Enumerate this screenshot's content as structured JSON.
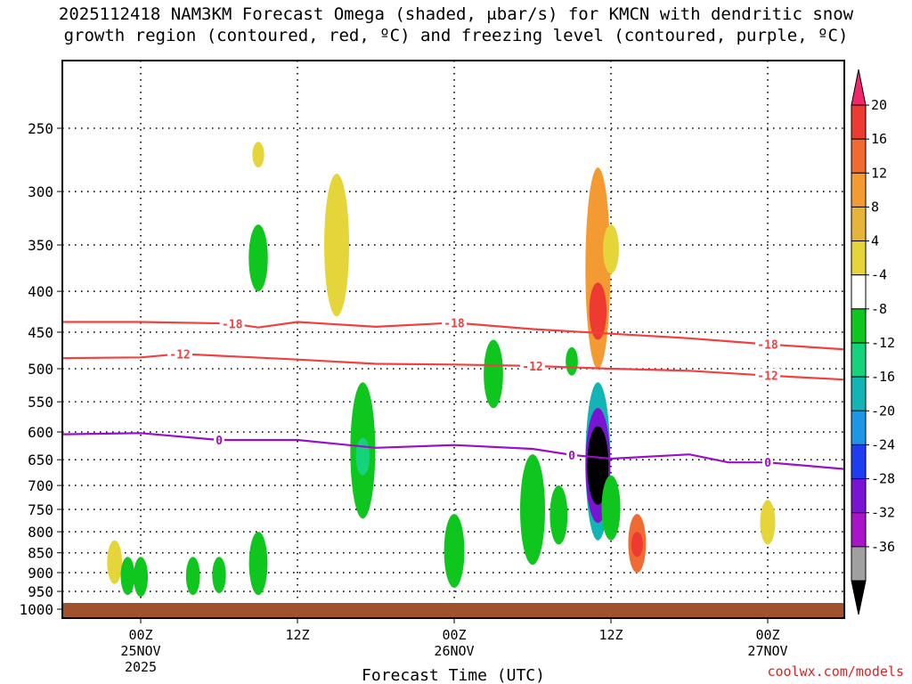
{
  "title": {
    "line1": "2025112418 NAM3KM Forecast Omega (shaded, μbar/s) for KMCN with dendritic snow",
    "line2": "growth region (contoured, red, ºC) and freezing level (contoured, purple, ºC)"
  },
  "credit": "coolwx.com/models",
  "chart_data": {
    "type": "heatmap",
    "xlabel": "Forecast Time (UTC)",
    "ylabel": "",
    "x_domain": [
      "2025-11-24T18Z",
      "2025-11-27T06Z"
    ],
    "y_axis": {
      "scale": "log-pressure",
      "range": [
        1000,
        200
      ],
      "reversed": true,
      "ticks": [
        250,
        300,
        350,
        400,
        450,
        500,
        550,
        600,
        650,
        700,
        750,
        800,
        850,
        900,
        950,
        1000
      ]
    },
    "x_ticks": [
      {
        "t": "2025-11-25T00Z",
        "line1": "00Z",
        "line2": "25NOV",
        "line3": "2025"
      },
      {
        "t": "2025-11-25T12Z",
        "line1": "12Z",
        "line2": "",
        "line3": ""
      },
      {
        "t": "2025-11-26T00Z",
        "line1": "00Z",
        "line2": "26NOV",
        "line3": ""
      },
      {
        "t": "2025-11-26T12Z",
        "line1": "12Z",
        "line2": "",
        "line3": ""
      },
      {
        "t": "2025-11-27T00Z",
        "line1": "00Z",
        "line2": "27NOV",
        "line3": ""
      }
    ],
    "grid": true,
    "colorbar": {
      "labels": [
        "20",
        "16",
        "12",
        "8",
        "4",
        "-4",
        "-8",
        "-12",
        "-16",
        "-20",
        "-24",
        "-28",
        "-32",
        "-36"
      ],
      "colors": [
        "#f0286a",
        "#ee3b32",
        "#f06a32",
        "#f39b32",
        "#e6b43a",
        "#e6d53a",
        "#ffffff",
        "#0fc61e",
        "#16d27a",
        "#12b4b4",
        "#1e96e6",
        "#1e3cf0",
        "#7814d2",
        "#a814c8",
        "#a0a0a0",
        "#000000"
      ]
    },
    "contours": [
      {
        "name": "dendritic -18",
        "label": "-18",
        "color": "#f04040",
        "points": [
          [
            "2025-11-24T18Z",
            437
          ],
          [
            "2025-11-25T00Z",
            437
          ],
          [
            "2025-11-25T07Z",
            439
          ],
          [
            "2025-11-25T09Z",
            444
          ],
          [
            "2025-11-25T12Z",
            437
          ],
          [
            "2025-11-25T18Z",
            443
          ],
          [
            "2025-11-26T00Z",
            438
          ],
          [
            "2025-11-26T06Z",
            446
          ],
          [
            "2025-11-26T12Z",
            452
          ],
          [
            "2025-11-26T18Z",
            458
          ],
          [
            "2025-11-27T00Z",
            466
          ],
          [
            "2025-11-27T06Z",
            473
          ]
        ]
      },
      {
        "name": "dendritic -12",
        "label": "-12",
        "color": "#f04040",
        "points": [
          [
            "2025-11-24T18Z",
            485
          ],
          [
            "2025-11-25T00Z",
            484
          ],
          [
            "2025-11-25T03Z",
            479
          ],
          [
            "2025-11-25T12Z",
            487
          ],
          [
            "2025-11-25T18Z",
            493
          ],
          [
            "2025-11-26T00Z",
            494
          ],
          [
            "2025-11-26T06Z",
            496
          ],
          [
            "2025-11-26T12Z",
            500
          ],
          [
            "2025-11-26T18Z",
            503
          ],
          [
            "2025-11-27T00Z",
            510
          ],
          [
            "2025-11-27T06Z",
            516
          ]
        ]
      },
      {
        "name": "freezing level 0",
        "label": "0",
        "color": "#9a10c8",
        "points": [
          [
            "2025-11-24T18Z",
            604
          ],
          [
            "2025-11-25T00Z",
            602
          ],
          [
            "2025-11-25T06Z",
            614
          ],
          [
            "2025-11-25T12Z",
            614
          ],
          [
            "2025-11-25T18Z",
            628
          ],
          [
            "2025-11-26T00Z",
            623
          ],
          [
            "2025-11-26T06Z",
            630
          ],
          [
            "2025-11-26T09Z",
            641
          ],
          [
            "2025-11-26T12Z",
            648
          ],
          [
            "2025-11-26T18Z",
            640
          ],
          [
            "2025-11-26T21Z",
            655
          ],
          [
            "2025-11-27T00Z",
            655
          ],
          [
            "2025-11-27T06Z",
            668
          ]
        ]
      }
    ],
    "shaded_regions": [
      {
        "t": "2025-11-24T22Z",
        "p_top": 820,
        "p_bot": 930,
        "value": 4,
        "color": "#e6d53a"
      },
      {
        "t": "2025-11-24T23Z",
        "p_top": 860,
        "p_bot": 960,
        "value": -4,
        "color": "#0fc61e"
      },
      {
        "t": "2025-11-25T00Z",
        "p_top": 860,
        "p_bot": 965,
        "value": -4,
        "color": "#0fc61e"
      },
      {
        "t": "2025-11-25T04Z",
        "p_top": 860,
        "p_bot": 960,
        "value": -4,
        "color": "#0fc61e"
      },
      {
        "t": "2025-11-25T06Z",
        "p_top": 860,
        "p_bot": 955,
        "value": -4,
        "color": "#0fc61e"
      },
      {
        "t": "2025-11-25T09Z",
        "p_top": 800,
        "p_bot": 960,
        "value": -4,
        "color": "#0fc61e"
      },
      {
        "t": "2025-11-25T09Z",
        "p_top": 260,
        "p_bot": 280,
        "value": 4,
        "color": "#e6d53a"
      },
      {
        "t": "2025-11-25T09Z",
        "p_top": 330,
        "p_bot": 400,
        "value": -4,
        "color": "#0fc61e"
      },
      {
        "t": "2025-11-25T15Z",
        "p_top": 285,
        "p_bot": 430,
        "value": 4,
        "color": "#e6d53a"
      },
      {
        "t": "2025-11-25T17Z",
        "p_top": 520,
        "p_bot": 770,
        "value": -4,
        "color": "#0fc61e"
      },
      {
        "t": "2025-11-25T17Z",
        "p_top": 610,
        "p_bot": 680,
        "value": -8,
        "color": "#16d27a"
      },
      {
        "t": "2025-11-26T00Z",
        "p_top": 760,
        "p_bot": 940,
        "value": -4,
        "color": "#0fc61e"
      },
      {
        "t": "2025-11-26T03Z",
        "p_top": 460,
        "p_bot": 560,
        "value": -4,
        "color": "#0fc61e"
      },
      {
        "t": "2025-11-26T06Z",
        "p_top": 640,
        "p_bot": 880,
        "value": -4,
        "color": "#0fc61e"
      },
      {
        "t": "2025-11-26T08Z",
        "p_top": 700,
        "p_bot": 830,
        "value": -4,
        "color": "#0fc61e"
      },
      {
        "t": "2025-11-26T09Z",
        "p_top": 470,
        "p_bot": 510,
        "value": -4,
        "color": "#0fc61e"
      },
      {
        "t": "2025-11-26T11Z",
        "p_top": 280,
        "p_bot": 500,
        "value": 8,
        "color": "#f39b32"
      },
      {
        "t": "2025-11-26T11Z",
        "p_top": 390,
        "p_bot": 460,
        "value": 16,
        "color": "#ee3b32"
      },
      {
        "t": "2025-11-26T11Z",
        "p_top": 520,
        "p_bot": 820,
        "value": -12,
        "color": "#12b4b4"
      },
      {
        "t": "2025-11-26T11Z",
        "p_top": 560,
        "p_bot": 780,
        "value": -28,
        "color": "#7814d2"
      },
      {
        "t": "2025-11-26T11Z",
        "p_top": 590,
        "p_bot": 740,
        "value": -36,
        "color": "#000000"
      },
      {
        "t": "2025-11-26T12Z",
        "p_top": 680,
        "p_bot": 820,
        "value": -4,
        "color": "#0fc61e"
      },
      {
        "t": "2025-11-26T12Z",
        "p_top": 330,
        "p_bot": 380,
        "value": 4,
        "color": "#e6d53a"
      },
      {
        "t": "2025-11-26T14Z",
        "p_top": 760,
        "p_bot": 900,
        "value": 12,
        "color": "#f06a32"
      },
      {
        "t": "2025-11-26T14Z",
        "p_top": 800,
        "p_bot": 860,
        "value": 16,
        "color": "#ee3b32"
      },
      {
        "t": "2025-11-27T00Z",
        "p_top": 730,
        "p_bot": 830,
        "value": 4,
        "color": "#e6d53a"
      }
    ]
  }
}
